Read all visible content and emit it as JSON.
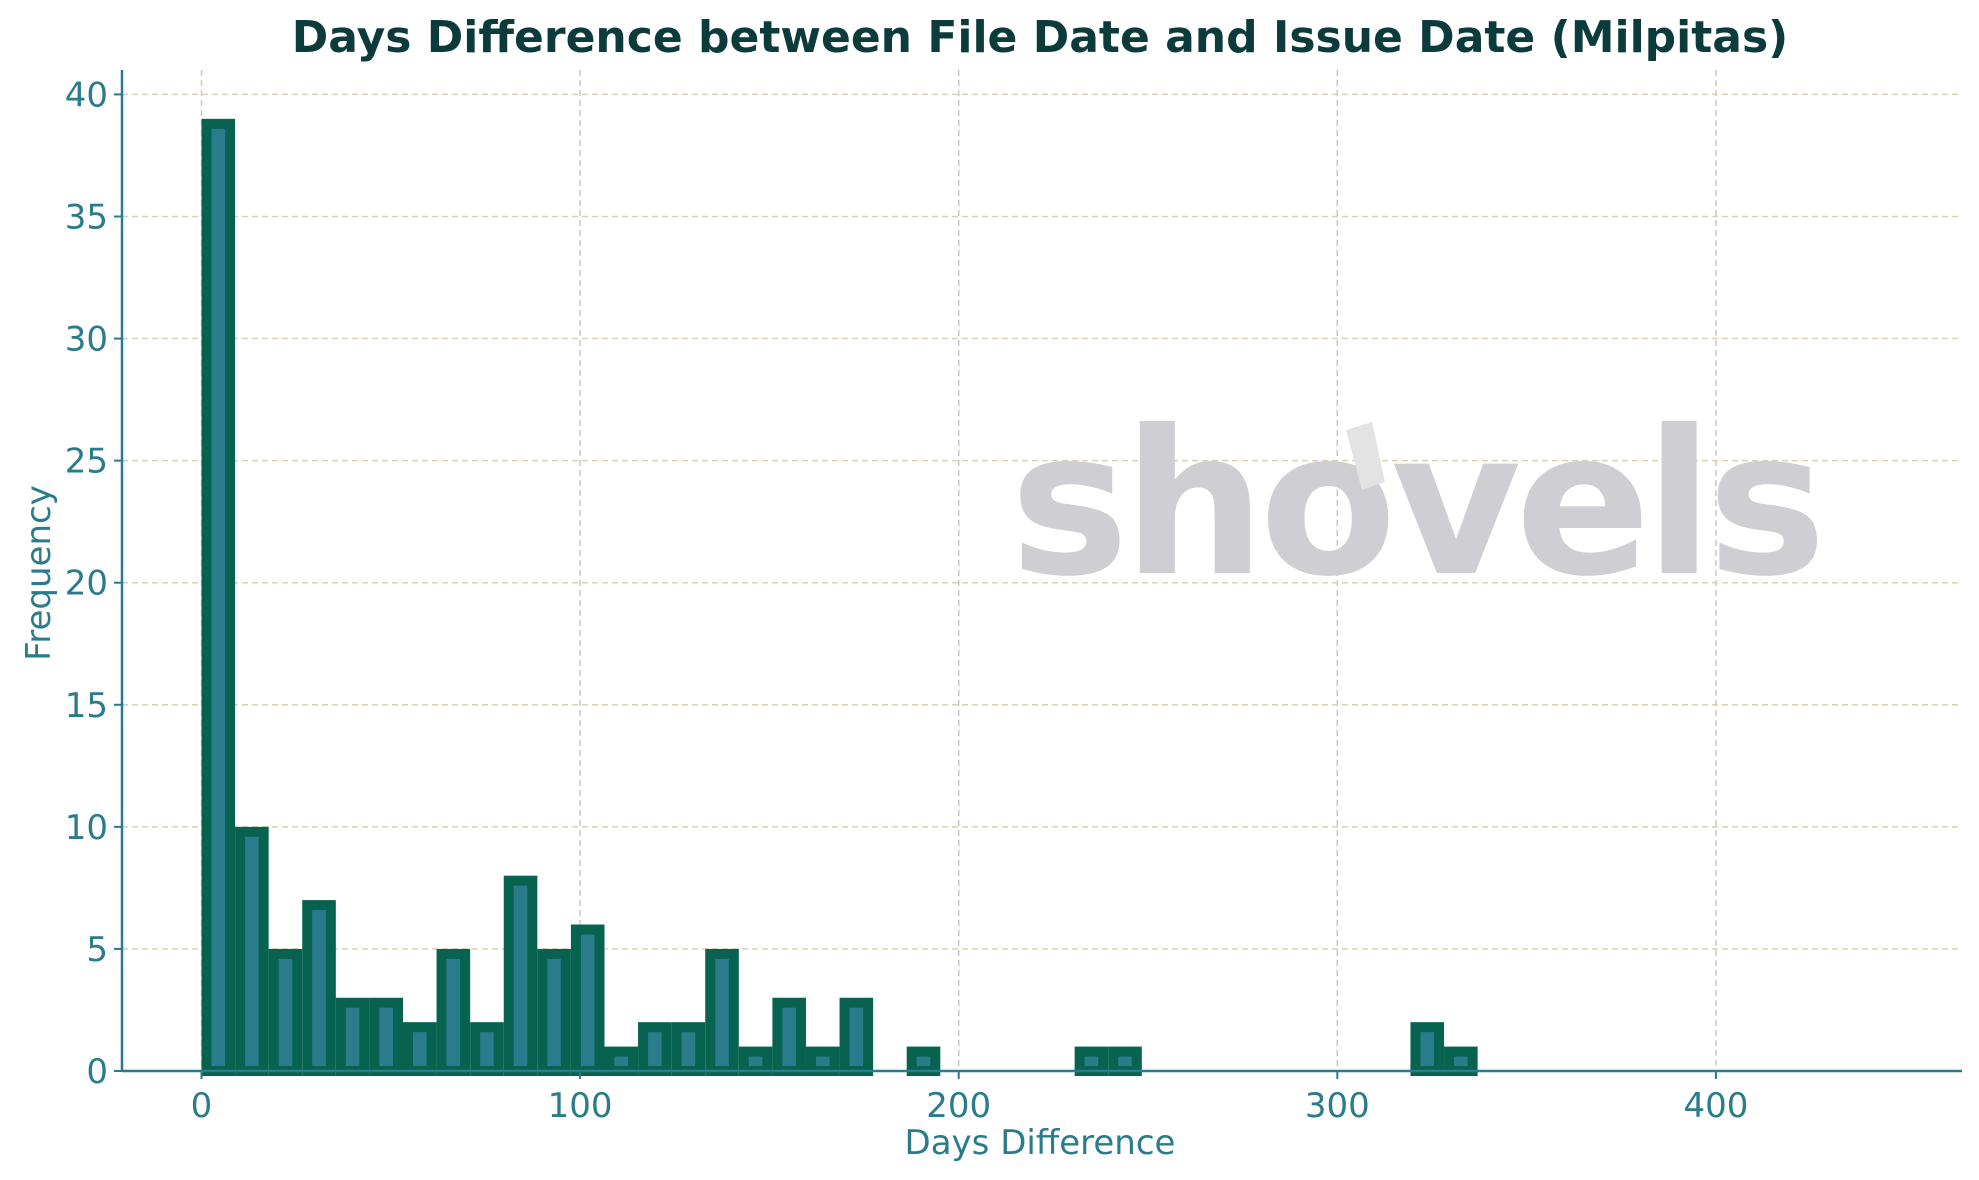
{
  "colors": {
    "bar_fill": "#2a7b8c",
    "bar_edge": "#07634f",
    "axis": "#2a7b8c",
    "title": "#0b3b3a",
    "tick_label": "#2a7b8c",
    "grid_vertical": "#c8c8c8",
    "grid_horizontal": "#d9d2b0",
    "watermark": "#cfcfd3",
    "watermark_accent": "#e3e3e3"
  },
  "watermark": {
    "text": "shovels"
  },
  "chart_data": {
    "type": "bar",
    "title": "Days Difference between File Date and Issue Date (Milpitas)",
    "xlabel": "Days Difference",
    "ylabel": "Frequency",
    "xlim": [
      -21,
      465
    ],
    "ylim": [
      0,
      41
    ],
    "xticks": [
      0,
      100,
      200,
      300,
      400
    ],
    "yticks": [
      0,
      5,
      10,
      15,
      20,
      25,
      30,
      35,
      40
    ],
    "bin_start": 0,
    "bin_width": 8.87,
    "values": [
      39,
      10,
      5,
      7,
      3,
      3,
      2,
      5,
      2,
      8,
      5,
      6,
      1,
      2,
      2,
      5,
      1,
      3,
      1,
      3,
      0,
      1,
      0,
      0,
      0,
      0,
      1,
      1,
      0,
      0,
      0,
      0,
      0,
      0,
      0,
      0,
      2,
      1,
      0,
      0,
      0,
      0,
      0,
      0,
      0,
      0,
      0,
      0,
      0,
      0
    ],
    "grid": true,
    "legend": "none"
  }
}
